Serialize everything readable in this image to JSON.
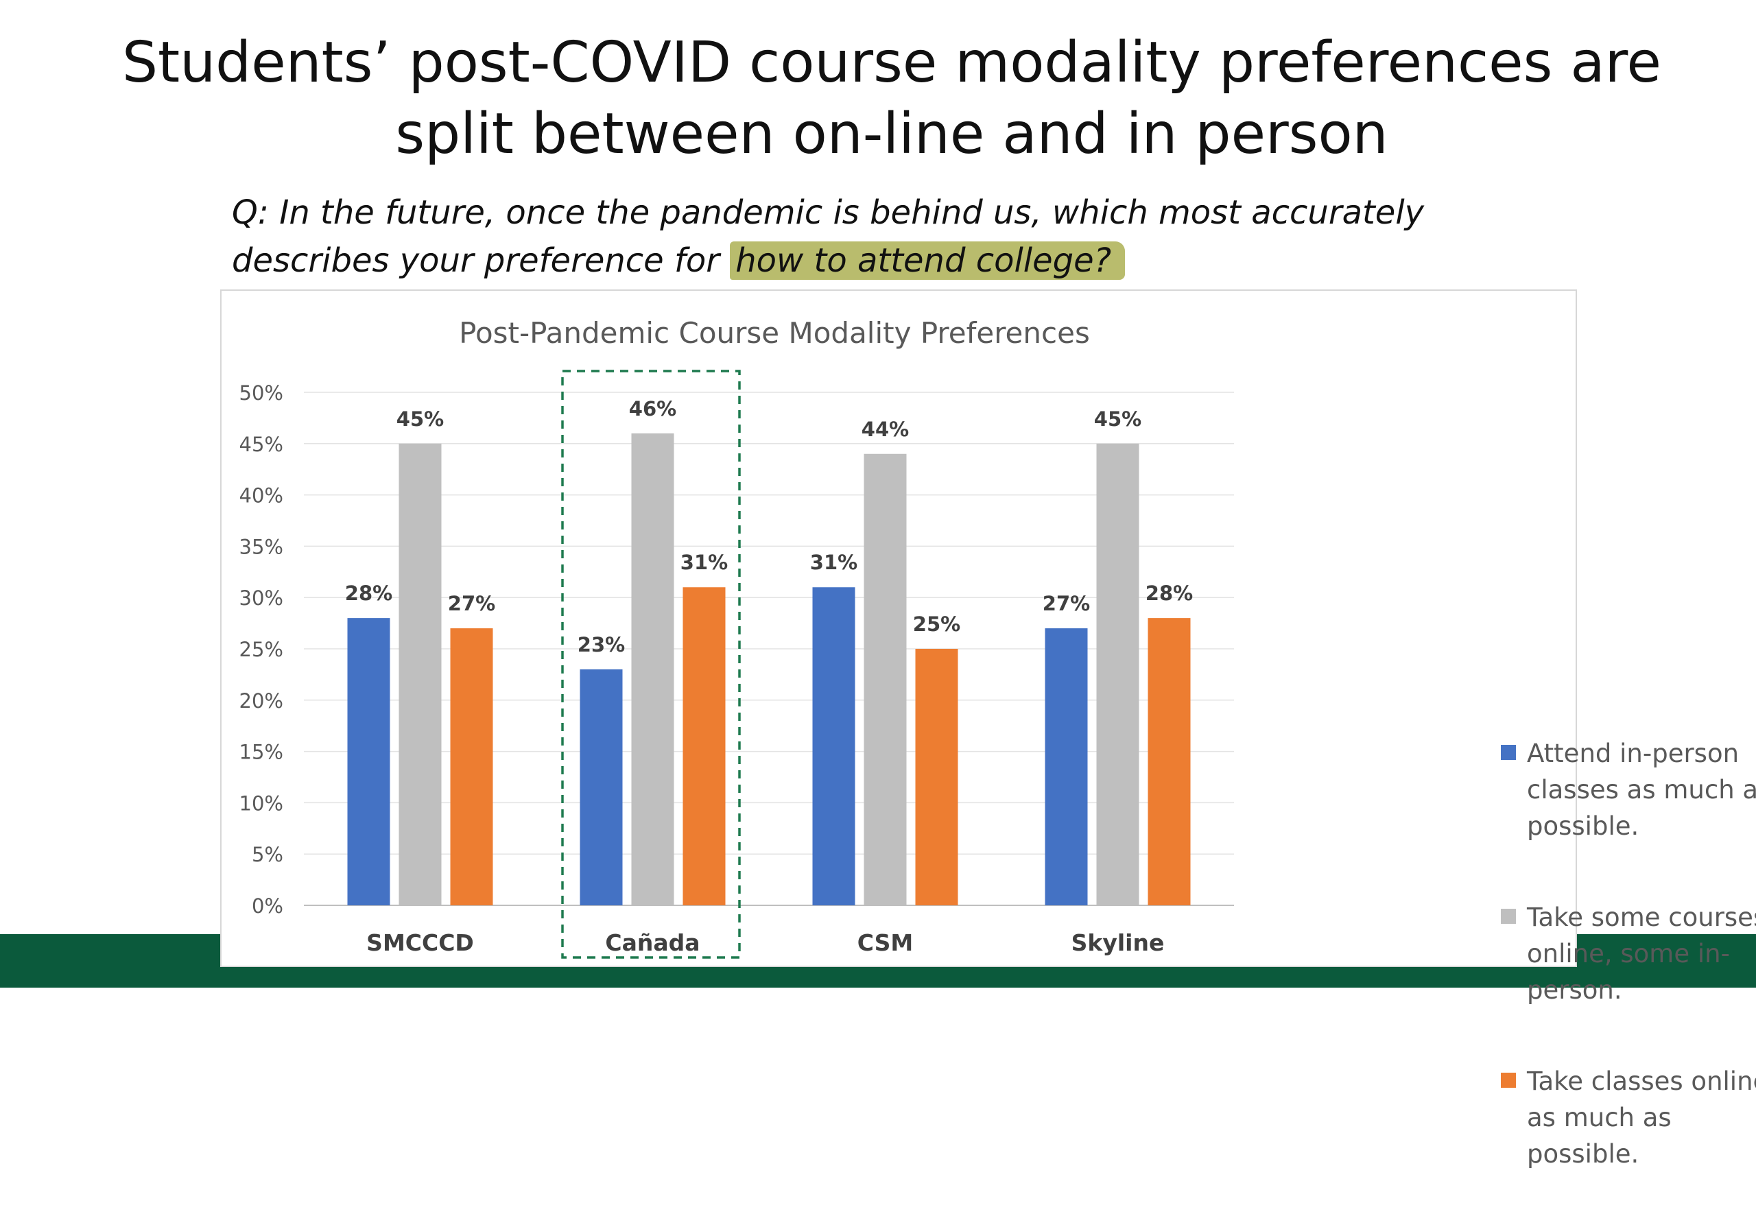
{
  "slide": {
    "title": "Students’ post-COVID course modality preferences are split between on-line and in person",
    "question_prefix": "Q: In the future, once the pandemic is behind us, which most accurately describes your preference for ",
    "question_highlight": "how to attend college?"
  },
  "colors": {
    "footer_band": "#0b5a3c",
    "highlight": "#b9bc6d",
    "in_person": "#4472c4",
    "hybrid": "#bfbfbf",
    "online": "#ed7d31",
    "focus_box": "#1e7a4f"
  },
  "chart_data": {
    "type": "bar",
    "title": "Post-Pandemic Course Modality Preferences",
    "categories": [
      "SMCCCD",
      "Cañada",
      "CSM",
      "Skyline"
    ],
    "series": [
      {
        "name": "Attend in-person classes as much as possible.",
        "values": [
          28,
          23,
          31,
          27
        ],
        "labels": [
          "28%",
          "23%",
          "31%",
          "27%"
        ],
        "color": "#4472c4"
      },
      {
        "name": "Take some courses online, some in-person.",
        "values": [
          45,
          46,
          44,
          45
        ],
        "labels": [
          "45%",
          "46%",
          "44%",
          "45%"
        ],
        "color": "#bfbfbf"
      },
      {
        "name": "Take classes online as much as possible.",
        "values": [
          27,
          31,
          25,
          28
        ],
        "labels": [
          "27%",
          "31%",
          "25%",
          "28%"
        ],
        "color": "#ed7d31"
      }
    ],
    "ylim": [
      0,
      50
    ],
    "yticks": [
      0,
      5,
      10,
      15,
      20,
      25,
      30,
      35,
      40,
      45,
      50
    ],
    "ytick_labels": [
      "0%",
      "5%",
      "10%",
      "15%",
      "20%",
      "25%",
      "30%",
      "35%",
      "40%",
      "45%",
      "50%"
    ],
    "grid": true,
    "legend_position": "right",
    "highlighted_category": "Cañada"
  }
}
